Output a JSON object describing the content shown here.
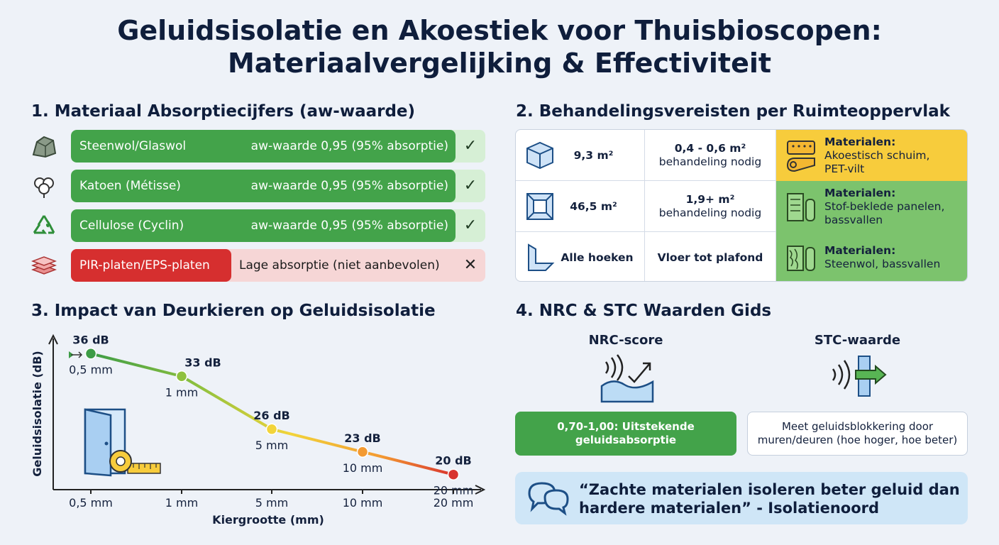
{
  "title_line1": "Geluidsisolatie en Akoestiek voor Thuisbioscopen:",
  "title_line2": "Materiaalvergelijking & Effectiviteit",
  "section1": {
    "heading": "1. Materiaal Absorptiecijfers (aw-waarde)",
    "items": [
      {
        "name": "Steenwol/Glaswol",
        "value": "aw-waarde 0,95 (95% absorptie)",
        "mark": "✓",
        "icon": "rock-icon"
      },
      {
        "name": "Katoen (Métisse)",
        "value": "aw-waarde 0,95 (95% absorptie)",
        "mark": "✓",
        "icon": "cotton-icon"
      },
      {
        "name": "Cellulose (Cyclin)",
        "value": "aw-waarde 0,95 (95% absorptie)",
        "mark": "✓",
        "icon": "recycle-icon"
      },
      {
        "name": "PIR-platen/EPS-platen",
        "value": "Lage absorptie (niet aanbevolen)",
        "mark": "✕",
        "icon": "panels-icon"
      }
    ]
  },
  "section2": {
    "heading": "2. Behandelingsvereisten per Ruimteoppervlak",
    "rows": [
      {
        "area": "9,3 m²",
        "need_line1": "0,4 - 0,6 m²",
        "need_line2": "behandeling nodig",
        "mat_title": "Materialen:",
        "mat_line1": "Akoestisch schuim,",
        "mat_line2": "PET-vilt",
        "color": "#f7cc3c"
      },
      {
        "area": "46,5 m²",
        "need_line1": "1,9+ m²",
        "need_line2": "behandeling nodig",
        "mat_title": "Materialen:",
        "mat_line1": "Stof-beklede panelen,",
        "mat_line2": "bassvallen",
        "color": "#7cc36d"
      },
      {
        "area": "Alle hoeken",
        "need_line1": "Vloer tot plafond",
        "need_line2": "",
        "mat_title": "Materialen:",
        "mat_line1": "Steenwol, bassvallen",
        "mat_line2": "",
        "color": "#7cc36d"
      }
    ]
  },
  "section3": {
    "heading": "3. Impact van Deurkieren op Geluidsisolatie"
  },
  "chart_data": {
    "type": "line",
    "categories": [
      "0,5 mm",
      "1 mm",
      "5 mm",
      "10 mm",
      "20 mm"
    ],
    "values": [
      36,
      33,
      26,
      23,
      20
    ],
    "data_labels": [
      "36 dB",
      "33 dB",
      "26 dB",
      "23 dB",
      "20 dB"
    ],
    "point_labels": [
      "0,5 mm",
      "1 mm",
      "5 mm",
      "10 mm",
      "20 mm"
    ],
    "point_colors": [
      "#3d9c46",
      "#8fc13e",
      "#f2d43a",
      "#f39a32",
      "#d8332e"
    ],
    "xlabel": "Kiergrootte (mm)",
    "ylabel": "Geluidsisolatie (dB)",
    "ylim": [
      18,
      38
    ],
    "grid": false
  },
  "section4": {
    "heading": "4. NRC & STC Waarden Gids",
    "nrc_label": "NRC-score",
    "nrc_text_line1": "0,70-1,00: Uitstekende",
    "nrc_text_line2": "geluidsabsorptie",
    "stc_label": "STC-waarde",
    "stc_text_line1": "Meet geluidsblokkering door",
    "stc_text_line2": "muren/deuren (hoe hoger, hoe beter)",
    "quote_line1": "“Zachte materialen isoleren beter geluid dan",
    "quote_line2": "hardere materialen” - Isolatienoord"
  }
}
